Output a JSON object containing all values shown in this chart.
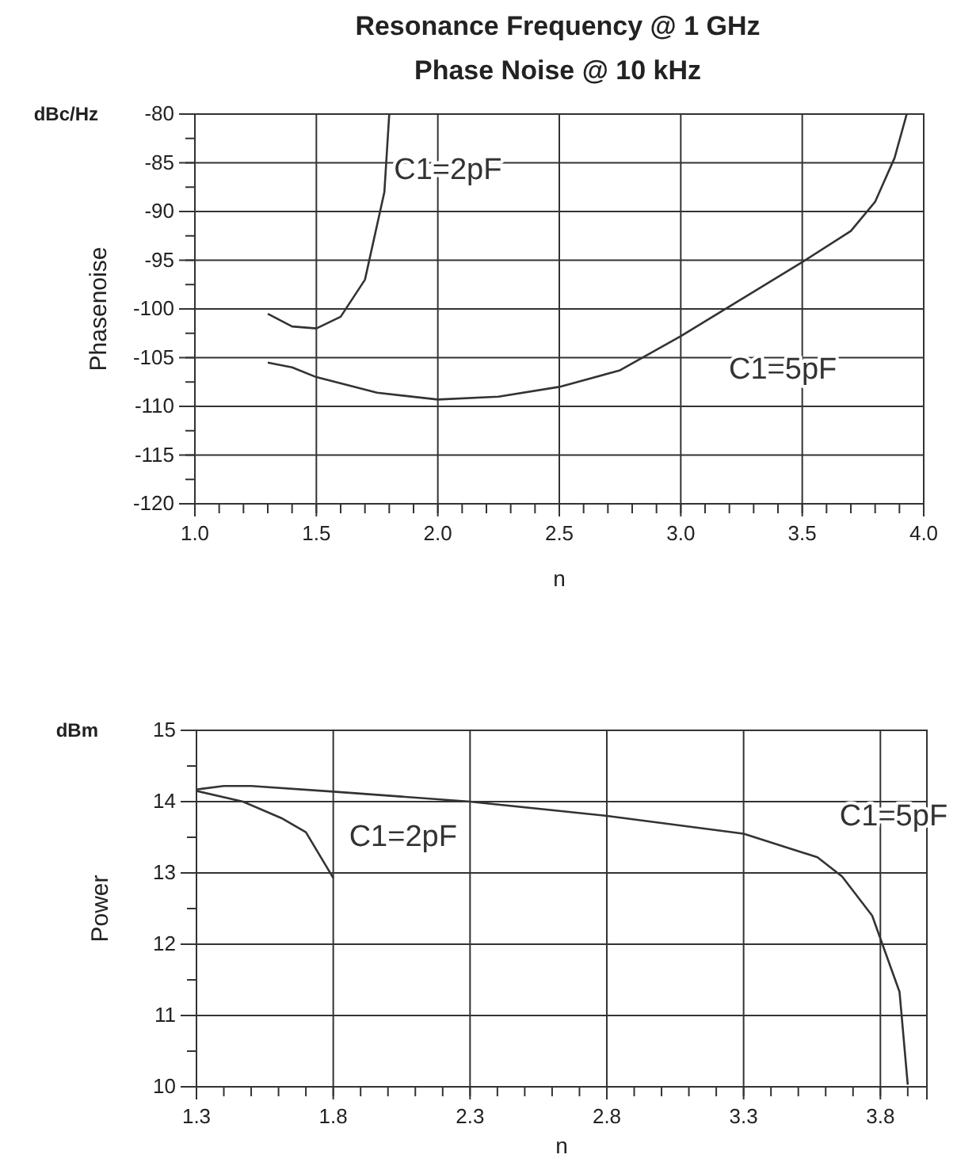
{
  "chart_data": [
    {
      "type": "line",
      "title": "Resonance Frequency @ 1 GHz",
      "subtitle": "Phase Noise @ 10 kHz",
      "xlabel": "n",
      "ylabel": "Phasenoise",
      "annotations": [
        "dBc/Hz"
      ],
      "xlim": [
        1.0,
        4.0
      ],
      "xticks": [
        {
          "value": 1.0,
          "label": "1.0"
        },
        1.5,
        {
          "value": 2.0,
          "label": "2.0"
        },
        2.5,
        {
          "value": 3.0,
          "label": "3.0"
        },
        3.5,
        {
          "value": 4.0,
          "label": "4.0"
        }
      ],
      "ylim": [
        -120,
        -80
      ],
      "yticks": [
        -120,
        -115,
        -110,
        -105,
        -100,
        -95,
        -90,
        -85,
        -80
      ],
      "grid": true,
      "legend": false,
      "marker": "none",
      "line_style": "solid",
      "series": [
        {
          "name": "C1=2pF",
          "color": "#333333",
          "x": [
            1.3,
            1.4,
            1.5,
            1.6,
            1.7,
            1.78,
            1.8
          ],
          "values": [
            -100.5,
            -101.8,
            -102,
            -100.8,
            -97,
            -88,
            -80
          ]
        },
        {
          "name": "C1=5pF",
          "color": "#333333",
          "x": [
            1.3,
            1.4,
            1.5,
            1.75,
            2.0,
            2.25,
            2.5,
            2.75,
            3.0,
            3.25,
            3.5,
            3.7,
            3.8,
            3.88,
            3.93
          ],
          "values": [
            -105.5,
            -106,
            -107,
            -108.6,
            -109.3,
            -109,
            -108,
            -106.3,
            -102.8,
            -99,
            -95.2,
            -92,
            -89,
            -84.5,
            -80
          ]
        }
      ]
    },
    {
      "type": "line",
      "xlabel": "n",
      "ylabel": "Power",
      "annotations": [
        "dBm"
      ],
      "xlim": [
        1.3,
        3.97
      ],
      "xticks": [
        1.3,
        1.8,
        2.3,
        2.8,
        3.3,
        3.8
      ],
      "ylim": [
        10,
        15
      ],
      "yticks": [
        10,
        11,
        12,
        13,
        14,
        15
      ],
      "grid": true,
      "legend": false,
      "marker": "none",
      "line_style": "solid",
      "series": [
        {
          "name": "C1=2pF",
          "color": "#333333",
          "x": [
            1.3,
            1.47,
            1.61,
            1.7,
            1.8
          ],
          "values": [
            14.15,
            14.0,
            13.77,
            13.57,
            12.93
          ]
        },
        {
          "name": "C1=5pF",
          "color": "#333333",
          "x": [
            1.3,
            1.4,
            1.5,
            1.8,
            2.3,
            2.8,
            3.3,
            3.57,
            3.66,
            3.77,
            3.87,
            3.9
          ],
          "values": [
            14.17,
            14.22,
            14.22,
            14.14,
            14.0,
            13.8,
            13.55,
            13.22,
            12.95,
            12.4,
            11.33,
            10.03
          ]
        }
      ]
    }
  ]
}
